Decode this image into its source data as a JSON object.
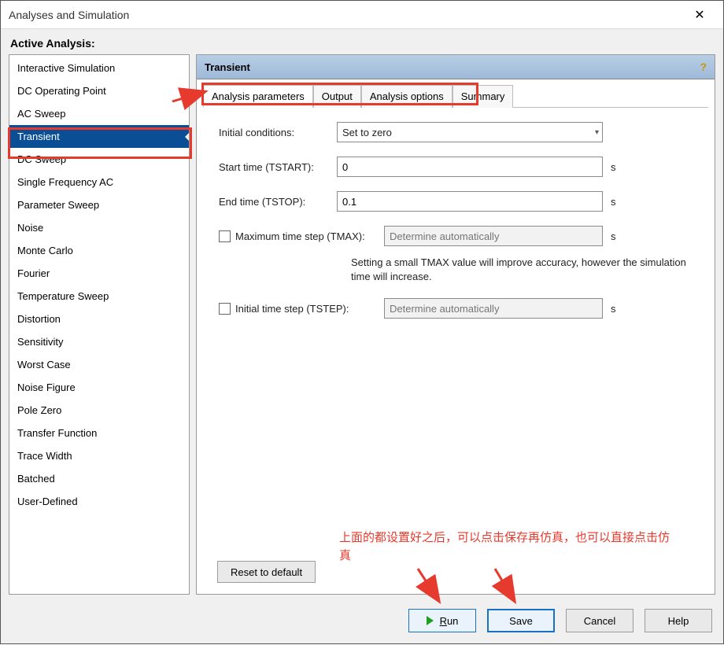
{
  "window": {
    "title": "Analyses and Simulation"
  },
  "active_label": "Active Analysis:",
  "sidebar": {
    "items": [
      "Interactive Simulation",
      "DC Operating Point",
      "AC Sweep",
      "Transient",
      "DC Sweep",
      "Single Frequency AC",
      "Parameter Sweep",
      "Noise",
      "Monte Carlo",
      "Fourier",
      "Temperature Sweep",
      "Distortion",
      "Sensitivity",
      "Worst Case",
      "Noise Figure",
      "Pole Zero",
      "Transfer Function",
      "Trace Width",
      "Batched",
      "User-Defined"
    ],
    "selected_index": 3
  },
  "panel": {
    "title": "Transient"
  },
  "tabs": {
    "items": [
      "Analysis parameters",
      "Output",
      "Analysis options",
      "Summary"
    ],
    "active_index": 0
  },
  "form": {
    "initial_conditions_label": "Initial conditions:",
    "initial_conditions_value": "Set to zero",
    "start_time_label": "Start time (TSTART):",
    "start_time_value": "0",
    "end_time_label": "End time (TSTOP):",
    "end_time_value": "0.1",
    "unit_seconds": "s",
    "tmax_checkbox_label": "Maximum time step (TMAX):",
    "tmax_placeholder": "Determine automatically",
    "tmax_hint": "Setting a small TMAX value will improve accuracy, however the simulation time will increase.",
    "tstep_checkbox_label": "Initial time step (TSTEP):",
    "tstep_placeholder": "Determine automatically",
    "reset_label": "Reset to default"
  },
  "footer": {
    "run": "Run",
    "save": "Save",
    "cancel": "Cancel",
    "help": "Help"
  },
  "annotation": {
    "text": "上面的都设置好之后，可以点击保存再仿真，也可以直接点击仿真",
    "color": "#e53a2d"
  },
  "highlight": {
    "color": "#e53a2d"
  }
}
